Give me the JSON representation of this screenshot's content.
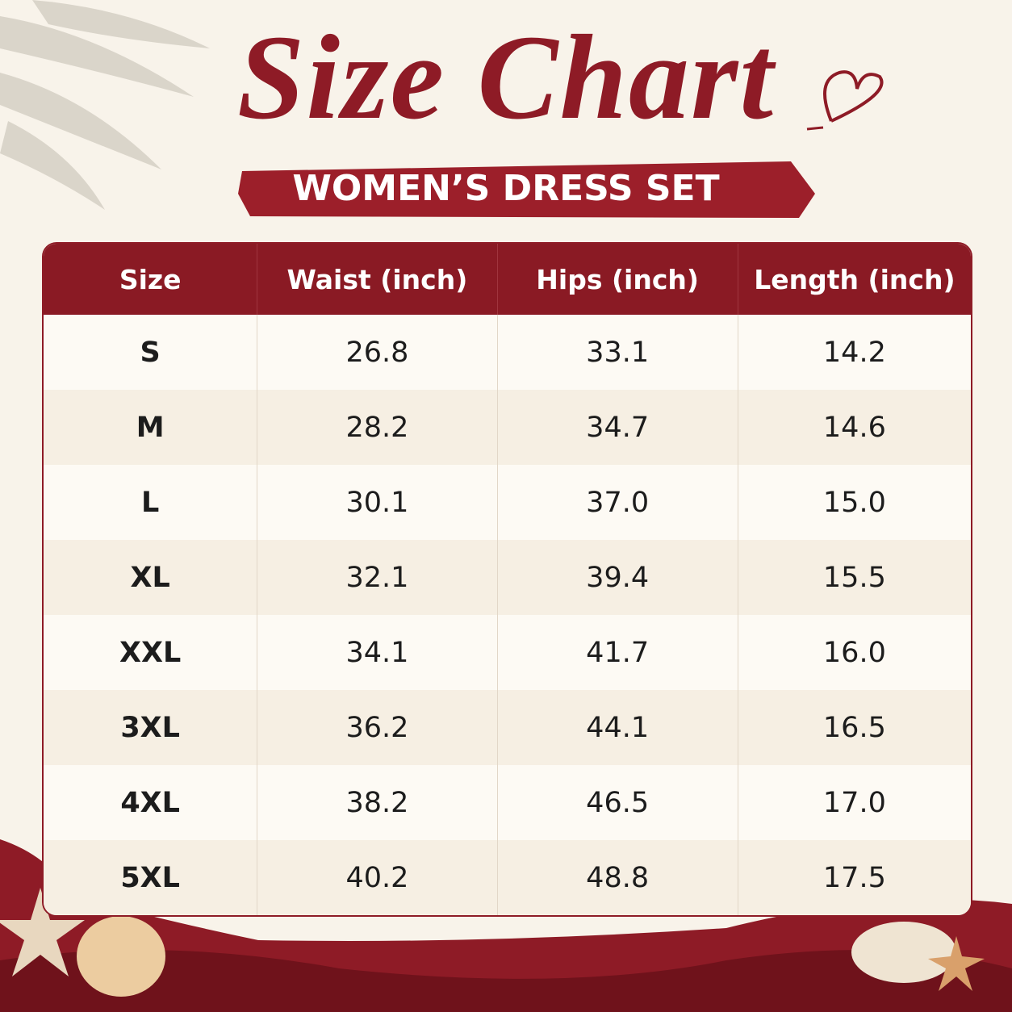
{
  "header": {
    "title": "Size Chart",
    "subtitle": "WOMEN’S DRESS SET"
  },
  "table": {
    "columns": [
      "Size",
      "Waist (inch)",
      "Hips (inch)",
      "Length (inch)"
    ],
    "rows": [
      [
        "S",
        "26.8",
        "33.1",
        "14.2"
      ],
      [
        "M",
        "28.2",
        "34.7",
        "14.6"
      ],
      [
        "L",
        "30.1",
        "37.0",
        "15.0"
      ],
      [
        "XL",
        "32.1",
        "39.4",
        "15.5"
      ],
      [
        "XXL",
        "34.1",
        "41.7",
        "16.0"
      ],
      [
        "3XL",
        "36.2",
        "44.1",
        "16.5"
      ],
      [
        "4XL",
        "38.2",
        "46.5",
        "17.0"
      ],
      [
        "5XL",
        "40.2",
        "48.8",
        "17.5"
      ]
    ]
  }
}
